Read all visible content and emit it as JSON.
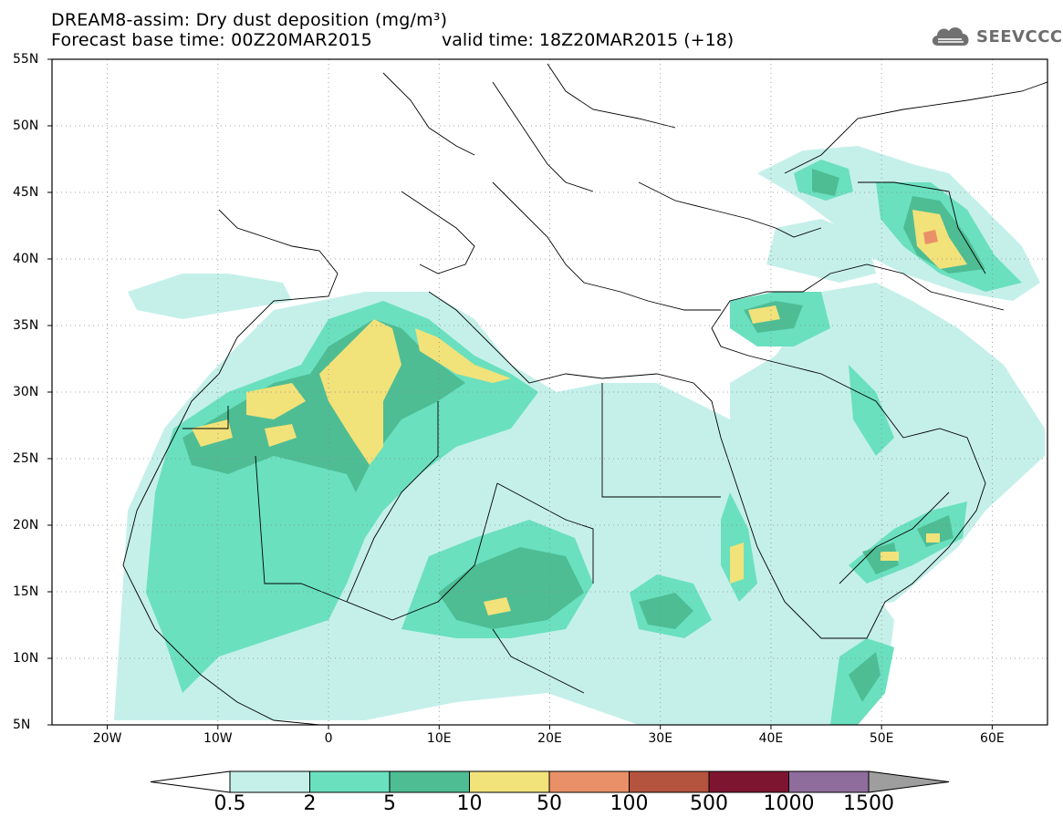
{
  "header": {
    "title_line1": "DREAM8-assim: Dry dust deposition (mg/m³)",
    "title_line2": "Forecast base time: 00Z20MAR2015",
    "valid_time": "valid time: 18Z20MAR2015 (+18)",
    "logo_text": "SEEVCCC"
  },
  "map": {
    "lat_labels": [
      "55N",
      "50N",
      "45N",
      "40N",
      "35N",
      "30N",
      "25N",
      "20N",
      "15N",
      "10N",
      "5N"
    ],
    "lon_labels": [
      "20W",
      "10W",
      "0",
      "10E",
      "20E",
      "30E",
      "40E",
      "50E",
      "60E"
    ],
    "extent": {
      "lon_min": -25,
      "lon_max": 65,
      "lat_min": 5,
      "lat_max": 55
    }
  },
  "colorbar": {
    "labels": [
      "0.5",
      "2",
      "5",
      "10",
      "50",
      "100",
      "500",
      "1000",
      "1500"
    ],
    "colors": [
      "#c5f0ea",
      "#6ae0bf",
      "#4ebd94",
      "#f2e27a",
      "#ea9068",
      "#b5543e",
      "#7d1530",
      "#8e6d9d"
    ],
    "under_color": "#ffffff",
    "over_color": "#9e9e9e"
  }
}
